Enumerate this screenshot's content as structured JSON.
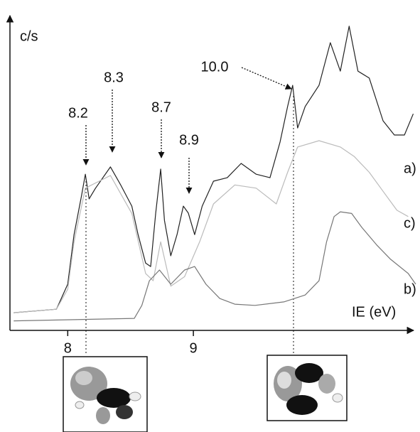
{
  "chart_data": {
    "type": "line",
    "y_label": "c/s",
    "x_label": "IE (eV)",
    "xlim": [
      7.54,
      10.77
    ],
    "xticks": [
      8,
      9
    ],
    "ylim": [
      0,
      100
    ],
    "annotations": [
      "8.2",
      "8.3",
      "8.7",
      "8.9",
      "10.0"
    ],
    "series": [
      {
        "name": "a)",
        "color": "#222222",
        "x": [
          7.57,
          7.91,
          8.0,
          8.05,
          8.11,
          8.14,
          8.17,
          8.22,
          8.34,
          8.42,
          8.51,
          8.56,
          8.62,
          8.66,
          8.7,
          8.74,
          8.77,
          8.82,
          8.87,
          8.92,
          8.96,
          9.01,
          9.07,
          9.16,
          9.27,
          9.38,
          9.5,
          9.61,
          9.69,
          9.75,
          9.79,
          9.83,
          9.89,
          10.0,
          10.09,
          10.17,
          10.24,
          10.31,
          10.4,
          10.51,
          10.6,
          10.68,
          10.75
        ],
        "values": [
          5.6,
          6.7,
          14.6,
          30.3,
          42.7,
          49.4,
          41.6,
          44.9,
          51.7,
          46.1,
          39.3,
          30.3,
          21.3,
          20.2,
          37.1,
          51.0,
          34.8,
          23.6,
          30.3,
          39.3,
          37.1,
          30.3,
          39.3,
          47.2,
          48.3,
          52.8,
          49.4,
          48.3,
          59.6,
          70.8,
          77.5,
          64.0,
          70.8,
          77.5,
          91.0,
          82.0,
          96.2,
          82.0,
          79.8,
          66.3,
          61.8,
          61.8,
          68.5
        ]
      },
      {
        "name": "c)",
        "color": "#bbbbbb",
        "x": [
          7.57,
          7.91,
          8.0,
          8.05,
          8.14,
          8.34,
          8.51,
          8.62,
          8.68,
          8.74,
          8.82,
          8.93,
          9.05,
          9.16,
          9.33,
          9.5,
          9.66,
          9.75,
          9.83,
          10.0,
          10.17,
          10.28,
          10.4,
          10.51,
          10.62,
          10.71
        ],
        "values": [
          5.6,
          6.7,
          13,
          28,
          45,
          49,
          37,
          18,
          15.7,
          28,
          14,
          17,
          28,
          40,
          46,
          45,
          40,
          50,
          58,
          60,
          58,
          55,
          50,
          44,
          38,
          36
        ]
      },
      {
        "name": "b)",
        "color": "#777777",
        "x": [
          7.57,
          8.53,
          8.59,
          8.65,
          8.73,
          8.82,
          8.93,
          9.01,
          9.1,
          9.21,
          9.33,
          9.49,
          9.72,
          9.89,
          10.0,
          10.06,
          10.12,
          10.17,
          10.26,
          10.34,
          10.46,
          10.57,
          10.71,
          10.77
        ],
        "values": [
          3,
          3.8,
          7.9,
          15.7,
          19.1,
          14.6,
          19.1,
          20.2,
          14.6,
          10.1,
          8.3,
          7.9,
          9,
          11.2,
          15.7,
          28,
          36,
          37.5,
          37,
          32.6,
          27,
          22.5,
          18,
          14.6
        ]
      }
    ]
  }
}
